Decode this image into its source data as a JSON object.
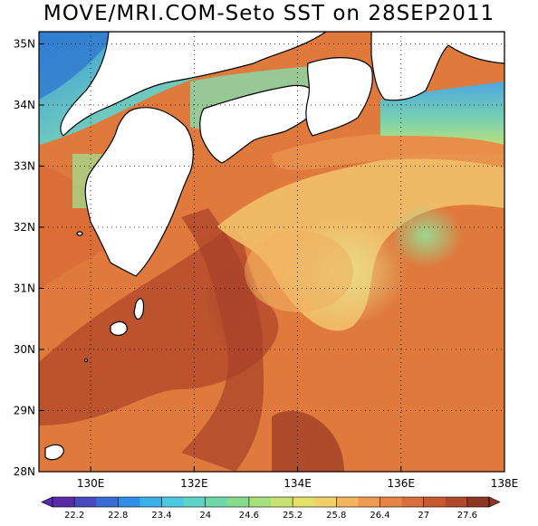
{
  "title": "MOVE/MRI.COM-Seto SST on 28SEP2011",
  "map": {
    "lon_range": [
      129.0,
      138.0
    ],
    "lat_range": [
      28.0,
      35.2
    ],
    "grid": "dotted",
    "y_ticks": [
      "35N",
      "34N",
      "33N",
      "32N",
      "31N",
      "30N",
      "29N",
      "28N"
    ],
    "y_tick_values": [
      35,
      34,
      33,
      32,
      31,
      30,
      29,
      28
    ],
    "x_ticks": [
      "130E",
      "132E",
      "134E",
      "136E",
      "138E"
    ],
    "x_tick_values": [
      130,
      132,
      134,
      136,
      138
    ],
    "land_color": "#ffffff",
    "coast_color": "#000000"
  },
  "colorbar": {
    "labels": [
      "22.2",
      "22.8",
      "23.4",
      "24",
      "24.6",
      "25.2",
      "25.8",
      "26.4",
      "27",
      "27.6"
    ],
    "colors": [
      "#5a2ba8",
      "#4848c0",
      "#3a6cd8",
      "#2f8ee6",
      "#3ab0ea",
      "#4cc8e0",
      "#5dd4c8",
      "#6ed8a8",
      "#86dc8c",
      "#a6e07a",
      "#c8e470",
      "#e4e06a",
      "#f2d068",
      "#f2b45c",
      "#ee9a50",
      "#e68444",
      "#da6e3a",
      "#c85a32",
      "#b0482c",
      "#8e3624"
    ]
  }
}
